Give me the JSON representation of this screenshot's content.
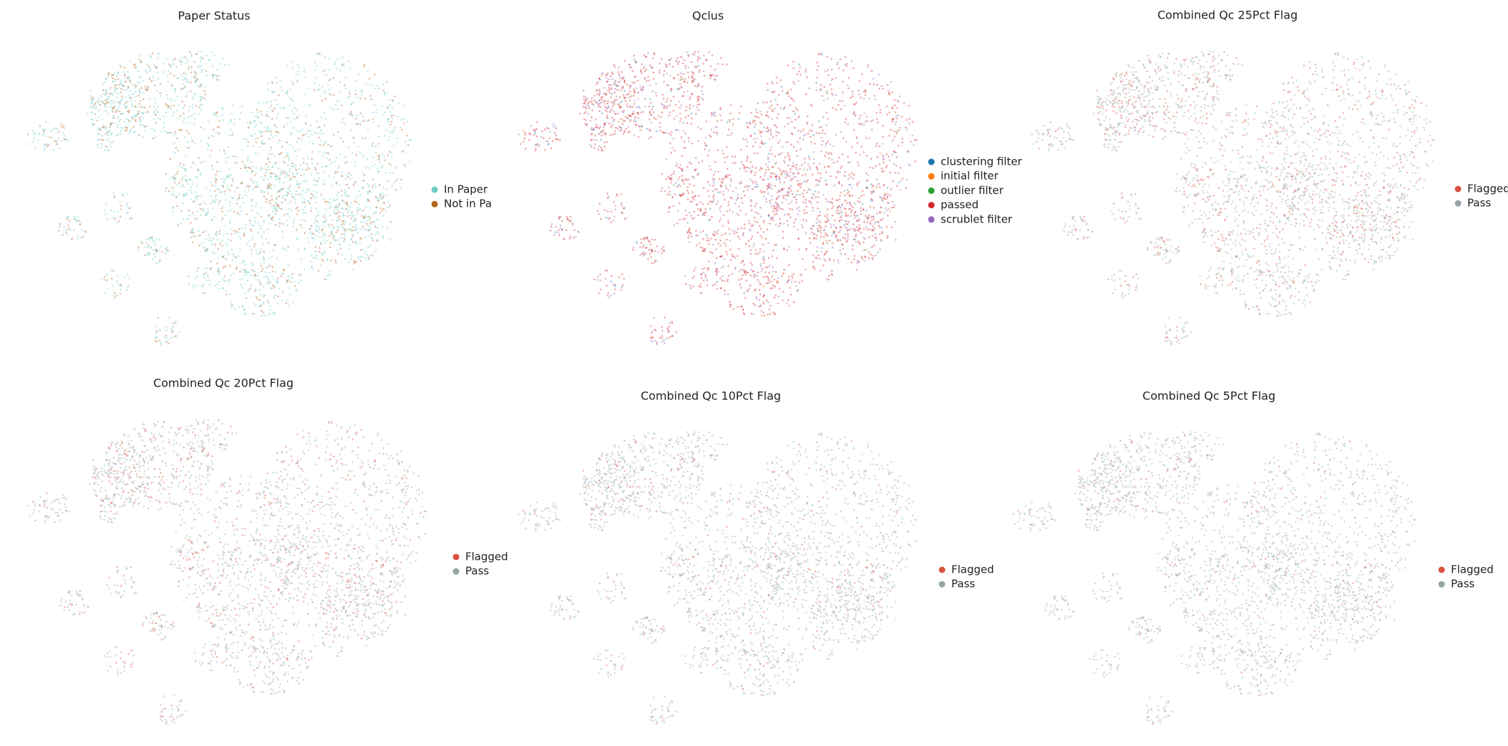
{
  "chart_data": [
    {
      "type": "scatter",
      "title": "Paper Status",
      "series": [
        {
          "name": "In Paper",
          "color": "#6fcbc6"
        },
        {
          "name": "Not in Paper",
          "color": "#b5651d"
        }
      ]
    },
    {
      "type": "scatter",
      "title": "Qclus",
      "series": [
        {
          "name": "clustering filter",
          "color": "#1f77b4"
        },
        {
          "name": "initial filter",
          "color": "#ff7f0e"
        },
        {
          "name": "outlier filter",
          "color": "#2ca02c"
        },
        {
          "name": "passed",
          "color": "#d62728"
        },
        {
          "name": "scrublet filter",
          "color": "#9467bd"
        }
      ]
    },
    {
      "type": "scatter",
      "title": "Combined Qc 25Pct Flag",
      "series": [
        {
          "name": "Flagged",
          "color": "#d9533f"
        },
        {
          "name": "Pass",
          "color": "#95a5a6"
        }
      ]
    },
    {
      "type": "scatter",
      "title": "Combined Qc 20Pct Flag",
      "series": [
        {
          "name": "Flagged",
          "color": "#d9533f"
        },
        {
          "name": "Pass",
          "color": "#95a5a6"
        }
      ]
    },
    {
      "type": "scatter",
      "title": "Combined Qc 10Pct Flag",
      "series": [
        {
          "name": "Flagged",
          "color": "#d9533f"
        },
        {
          "name": "Pass",
          "color": "#95a5a6"
        }
      ]
    },
    {
      "type": "scatter",
      "title": "Combined Qc 5Pct Flag",
      "series": [
        {
          "name": "Flagged",
          "color": "#d9533f"
        },
        {
          "name": "Pass",
          "color": "#95a5a6"
        }
      ]
    }
  ]
}
